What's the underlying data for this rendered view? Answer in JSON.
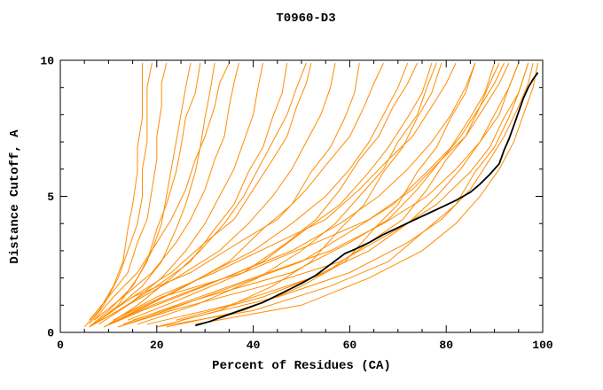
{
  "title": "T0960-D3",
  "chart_data": {
    "type": "line",
    "title": "T0960-D3",
    "xlabel": "Percent of Residues (CA)",
    "ylabel": "Distance Cutoff, A",
    "xlim": [
      0,
      100
    ],
    "ylim": [
      0,
      10
    ],
    "grid": false,
    "legend": "none",
    "x_major_ticks": [
      0,
      20,
      40,
      60,
      80,
      100
    ],
    "x_tick_labels": [
      "0",
      "20",
      "40",
      "60",
      "80",
      "100"
    ],
    "x_minor_step": 5,
    "y_major_ticks": [
      0,
      5,
      10
    ],
    "y_tick_labels": [
      "0",
      "5",
      "10"
    ],
    "y_minor_step": 1,
    "colors": {
      "model": "#ff8c00",
      "highlight": "#000000",
      "frame": "#000000",
      "background": "#ffffff"
    },
    "y_patterns": [
      [
        0.3,
        1.0,
        2.0,
        3.0,
        4.0,
        5.0,
        6.0,
        7.0,
        8.0,
        9.0,
        9.9
      ],
      [
        0.2,
        0.8,
        1.7,
        2.6,
        3.8,
        4.7,
        5.9,
        6.8,
        7.9,
        8.8,
        9.9
      ],
      [
        0.45,
        1.3,
        2.2,
        3.3,
        4.15,
        5.25,
        6.35,
        7.2,
        8.3,
        9.15,
        9.9
      ]
    ],
    "model_series": [
      {
        "x": [
          5,
          8,
          11,
          13,
          14,
          15,
          16,
          16,
          17,
          17,
          17
        ],
        "yp": 1
      },
      {
        "x": [
          6,
          9,
          12,
          14,
          16,
          17,
          17,
          18,
          18,
          18,
          19
        ],
        "yp": 0
      },
      {
        "x": [
          6,
          10,
          14,
          16,
          18,
          19,
          20,
          20,
          21,
          21,
          22
        ],
        "yp": 2
      },
      {
        "x": [
          7,
          12,
          16,
          19,
          21,
          22,
          23,
          24,
          25,
          26,
          27
        ],
        "yp": 0
      },
      {
        "x": [
          6,
          11,
          17,
          21,
          24,
          26,
          28,
          29,
          30,
          31,
          32
        ],
        "yp": 1
      },
      {
        "x": [
          7,
          13,
          19,
          24,
          27,
          30,
          32,
          34,
          35,
          36,
          37
        ],
        "yp": 2
      },
      {
        "x": [
          8,
          14,
          21,
          26,
          30,
          33,
          36,
          38,
          40,
          41,
          42
        ],
        "yp": 0
      },
      {
        "x": [
          6,
          12,
          20,
          27,
          32,
          36,
          39,
          42,
          44,
          46,
          47
        ],
        "yp": 1
      },
      {
        "x": [
          8,
          15,
          23,
          30,
          36,
          40,
          44,
          47,
          49,
          51,
          52
        ],
        "yp": 2
      },
      {
        "x": [
          7,
          14,
          24,
          33,
          39,
          44,
          48,
          51,
          54,
          56,
          57
        ],
        "yp": 0
      },
      {
        "x": [
          9,
          16,
          26,
          35,
          42,
          48,
          52,
          56,
          59,
          61,
          62
        ],
        "yp": 1
      },
      {
        "x": [
          8,
          15,
          27,
          37,
          45,
          51,
          56,
          60,
          63,
          65,
          67
        ],
        "yp": 2
      },
      {
        "x": [
          10,
          18,
          29,
          40,
          48,
          55,
          60,
          64,
          67,
          70,
          72
        ],
        "yp": 0
      },
      {
        "x": [
          9,
          17,
          30,
          42,
          51,
          58,
          64,
          68,
          72,
          75,
          77
        ],
        "yp": 1
      },
      {
        "x": [
          11,
          20,
          32,
          45,
          55,
          62,
          68,
          73,
          77,
          80,
          82
        ],
        "yp": 2
      },
      {
        "x": [
          10,
          19,
          34,
          48,
          58,
          66,
          72,
          77,
          81,
          84,
          86
        ],
        "yp": 0
      },
      {
        "x": [
          12,
          22,
          36,
          50,
          61,
          69,
          76,
          81,
          85,
          88,
          90
        ],
        "yp": 1
      },
      {
        "x": [
          11,
          21,
          38,
          53,
          64,
          73,
          79,
          84,
          88,
          91,
          93
        ],
        "yp": 2
      },
      {
        "x": [
          13,
          24,
          40,
          56,
          67,
          76,
          82,
          87,
          91,
          93,
          95
        ],
        "yp": 0
      },
      {
        "x": [
          12,
          23,
          42,
          58,
          70,
          78,
          85,
          89,
          92,
          95,
          97
        ],
        "yp": 1
      },
      {
        "x": [
          15,
          30,
          48,
          60,
          68,
          74,
          79,
          83,
          87,
          90,
          92
        ],
        "yp": 2
      },
      {
        "x": [
          18,
          35,
          52,
          64,
          72,
          78,
          83,
          87,
          90,
          93,
          95
        ],
        "yp": 0
      },
      {
        "x": [
          20,
          40,
          56,
          68,
          76,
          82,
          86,
          90,
          93,
          95,
          97
        ],
        "yp": 1
      },
      {
        "x": [
          25,
          45,
          60,
          72,
          79,
          85,
          89,
          92,
          95,
          97,
          98
        ],
        "yp": 2
      },
      {
        "x": [
          28,
          50,
          64,
          75,
          82,
          87,
          91,
          94,
          96,
          98,
          99
        ],
        "yp": 0
      },
      {
        "x": [
          20,
          33,
          44,
          52,
          58,
          63,
          67,
          71,
          74,
          77,
          79
        ],
        "yp": 1
      },
      {
        "x": [
          14,
          26,
          38,
          47,
          53,
          58,
          62,
          66,
          69,
          72,
          74
        ],
        "yp": 2
      },
      {
        "x": [
          16,
          28,
          41,
          50,
          57,
          62,
          67,
          70,
          74,
          76,
          78
        ],
        "yp": 0
      },
      {
        "x": [
          22,
          38,
          50,
          59,
          65,
          70,
          74,
          78,
          81,
          84,
          86
        ],
        "yp": 1
      },
      {
        "x": [
          24,
          42,
          55,
          64,
          71,
          76,
          80,
          84,
          87,
          89,
          91
        ],
        "yp": 2
      },
      {
        "x": [
          6,
          10,
          15,
          18,
          20,
          22,
          24,
          25,
          26,
          28,
          29
        ],
        "yp": 1
      },
      {
        "x": [
          7,
          11,
          16,
          20,
          23,
          26,
          28,
          30,
          32,
          33,
          35
        ],
        "yp": 2
      },
      {
        "x": [
          10,
          16,
          23,
          29,
          34,
          38,
          41,
          44,
          47,
          49,
          51
        ],
        "yp": 0
      }
    ],
    "highlight_series": {
      "name": "black-curve",
      "points": [
        [
          28,
          0.25
        ],
        [
          31,
          0.4
        ],
        [
          34,
          0.6
        ],
        [
          38,
          0.85
        ],
        [
          42,
          1.1
        ],
        [
          46,
          1.45
        ],
        [
          50,
          1.8
        ],
        [
          53,
          2.1
        ],
        [
          56,
          2.5
        ],
        [
          59,
          2.9
        ],
        [
          61,
          3.05
        ],
        [
          64,
          3.3
        ],
        [
          67,
          3.6
        ],
        [
          70,
          3.85
        ],
        [
          73,
          4.1
        ],
        [
          76,
          4.35
        ],
        [
          79,
          4.6
        ],
        [
          82,
          4.85
        ],
        [
          85,
          5.15
        ],
        [
          87,
          5.45
        ],
        [
          89,
          5.8
        ],
        [
          91,
          6.2
        ],
        [
          92,
          6.7
        ],
        [
          93,
          7.1
        ],
        [
          94,
          7.6
        ],
        [
          95,
          8.1
        ],
        [
          96,
          8.6
        ],
        [
          97,
          9.0
        ],
        [
          98,
          9.3
        ],
        [
          99,
          9.55
        ]
      ]
    }
  }
}
